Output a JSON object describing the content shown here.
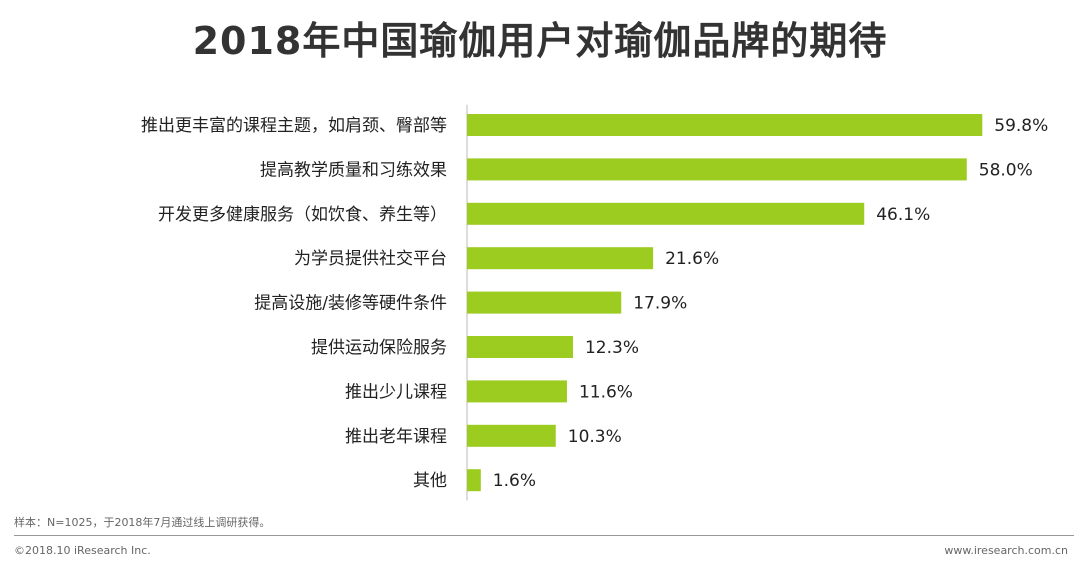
{
  "colors": {
    "bar": "#9bcc1f",
    "text": "#222222",
    "title": "#333333",
    "footer": "#666666"
  },
  "chart_data": {
    "type": "bar",
    "orientation": "horizontal",
    "title": "2018年中国瑜伽用户对瑜伽品牌的期待",
    "categories": [
      "推出更丰富的课程主题，如肩颈、臀部等",
      "提高教学质量和习练效果",
      "开发更多健康服务（如饮食、养生等）",
      "为学员提供社交平台",
      "提高设施/装修等硬件条件",
      "提供运动保险服务",
      "推出少儿课程",
      "推出老年课程",
      "其他"
    ],
    "values": [
      59.8,
      58.0,
      46.1,
      21.6,
      17.9,
      12.3,
      11.6,
      10.3,
      1.6
    ],
    "value_labels": [
      "59.8%",
      "58.0%",
      "46.1%",
      "21.6%",
      "17.9%",
      "12.3%",
      "11.6%",
      "10.3%",
      "1.6%"
    ],
    "unit": "%",
    "xlim": [
      0,
      60
    ],
    "grid": false,
    "legend": "none"
  },
  "footer": {
    "note": "样本：N=1025，于2018年7月通过线上调研获得。",
    "copyright": "©2018.10 iResearch Inc.",
    "website": "www.iresearch.com.cn"
  }
}
